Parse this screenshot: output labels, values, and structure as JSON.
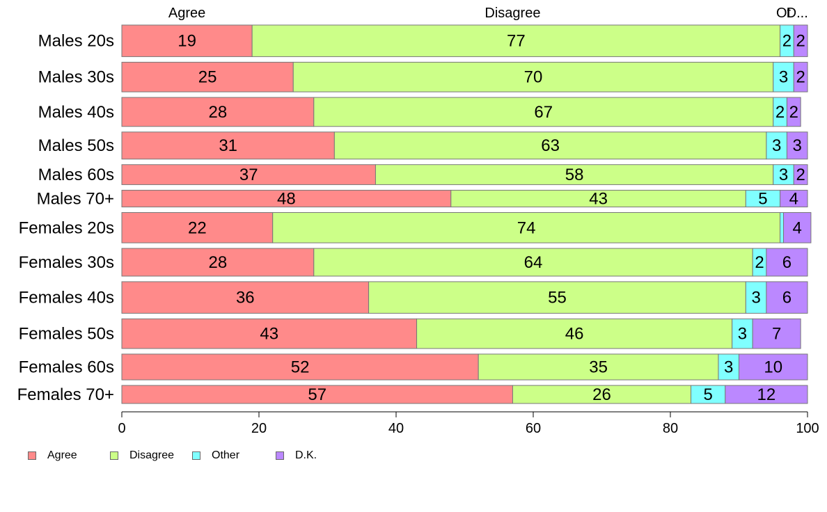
{
  "chart_data": {
    "type": "bar",
    "orientation": "horizontal",
    "stacked": true,
    "categories": [
      "Males 20s",
      "Males 30s",
      "Males 40s",
      "Males 50s",
      "Males 60s",
      "Males 70+",
      "Females 20s",
      "Females 30s",
      "Females 40s",
      "Females 50s",
      "Females 60s",
      "Females 70+"
    ],
    "series": [
      {
        "name": "Agree",
        "color": "#FF8A8A",
        "values": [
          19,
          25,
          28,
          31,
          37,
          48,
          22,
          28,
          36,
          43,
          52,
          57
        ]
      },
      {
        "name": "Disagree",
        "color": "#CCFF88",
        "values": [
          77,
          70,
          67,
          63,
          58,
          43,
          74,
          64,
          55,
          46,
          35,
          26
        ]
      },
      {
        "name": "Other",
        "color": "#80FFFF",
        "values": [
          2,
          3,
          2,
          3,
          3,
          5,
          0.5,
          2,
          3,
          3,
          3,
          5
        ]
      },
      {
        "name": "D.K.",
        "color": "#BB88FF",
        "values": [
          2,
          2,
          2,
          3,
          2,
          4,
          4,
          6,
          6,
          7,
          10,
          12
        ]
      }
    ],
    "data_labels": [
      [
        "19",
        "77",
        "2",
        "2"
      ],
      [
        "25",
        "70",
        "3",
        "2"
      ],
      [
        "28",
        "67",
        "2",
        "2"
      ],
      [
        "31",
        "63",
        "3",
        "3"
      ],
      [
        "37",
        "58",
        "3",
        "2"
      ],
      [
        "48",
        "43",
        "5",
        "4"
      ],
      [
        "22",
        "74",
        "",
        "4"
      ],
      [
        "28",
        "64",
        "2",
        "6"
      ],
      [
        "36",
        "55",
        "3",
        "6"
      ],
      [
        "43",
        "46",
        "3",
        "7"
      ],
      [
        "52",
        "35",
        "3",
        "10"
      ],
      [
        "57",
        "26",
        "5",
        "12"
      ]
    ],
    "row_weights": [
      0.98,
      0.92,
      0.9,
      0.84,
      0.62,
      0.52,
      0.94,
      0.86,
      0.98,
      0.92,
      0.8,
      0.56
    ],
    "top_labels": [
      "Agree",
      "Disagree",
      "Ot",
      "D..."
    ],
    "top_label_positions": [
      9.5,
      57,
      96.5,
      98.5
    ],
    "xlim": [
      0,
      100
    ],
    "xticks": [
      0,
      20,
      40,
      60,
      80,
      100
    ],
    "xlabel": "",
    "ylabel": "",
    "title": "",
    "legend_position": "bottom-left",
    "grid": false
  }
}
